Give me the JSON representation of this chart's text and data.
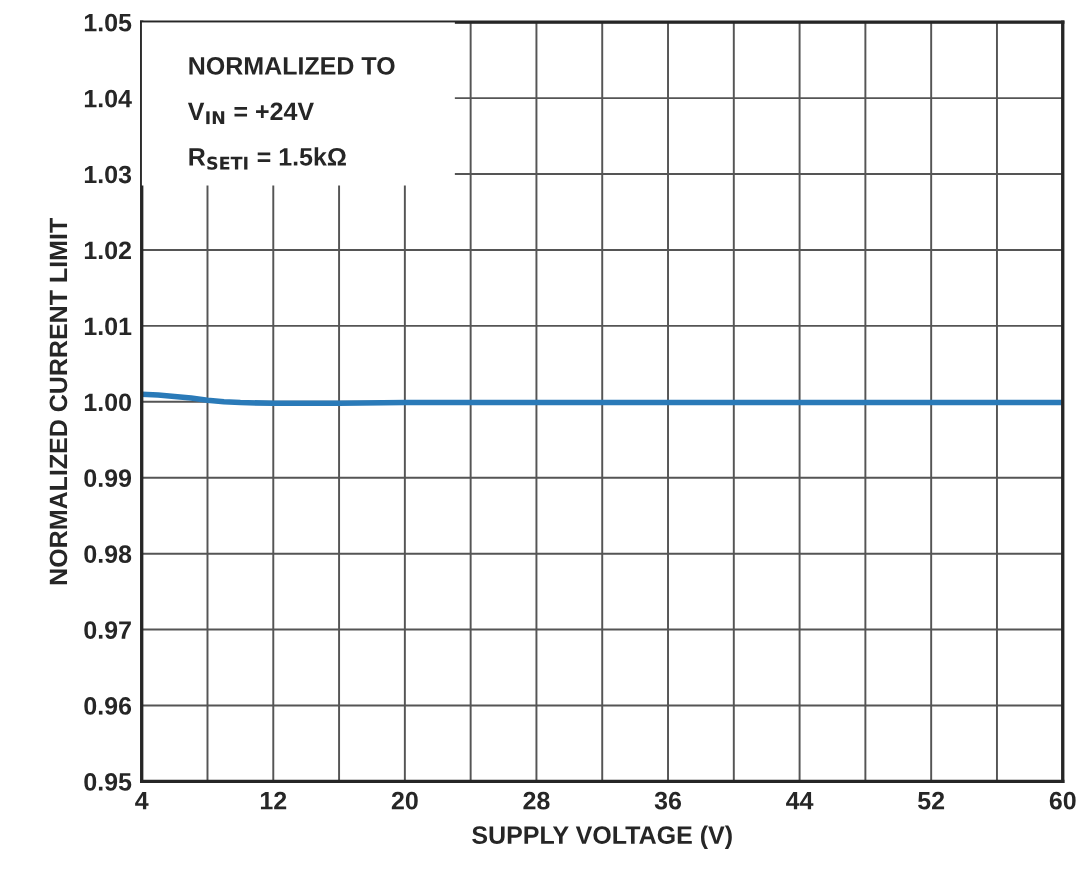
{
  "chart_data": {
    "type": "line",
    "xlabel": "SUPPLY VOLTAGE (V)",
    "ylabel": "NORMALIZED CURRENT LIMIT",
    "annotations": [
      "NORMALIZED TO",
      "V$_{IN}$ = +24V",
      "R$_{SETI}$ = 1.5kΩ"
    ],
    "x": [
      4,
      5,
      6,
      7,
      8,
      9,
      10,
      12,
      16,
      20,
      28,
      36,
      44,
      52,
      60
    ],
    "series": [
      {
        "color": "#2a7ab8",
        "values": [
          1.001,
          1.0009,
          1.0007,
          1.0005,
          1.0002,
          1.0,
          0.9999,
          0.9998,
          0.9998,
          0.9999,
          0.9999,
          0.9999,
          0.9999,
          0.9999,
          0.9999
        ]
      }
    ],
    "xlim": [
      4,
      60
    ],
    "ylim": [
      0.95,
      1.05
    ],
    "xticks": [
      4,
      {
        "value": 8,
        "label": null
      },
      12,
      {
        "value": 16,
        "label": null
      },
      20,
      {
        "value": 24,
        "label": null
      },
      28,
      {
        "value": 32,
        "label": null
      },
      36,
      {
        "value": 40,
        "label": null
      },
      44,
      {
        "value": 48,
        "label": null
      },
      52,
      {
        "value": 56,
        "label": null
      },
      60
    ],
    "yticks": [
      {
        "value": 0.95,
        "label": "0.95"
      },
      {
        "value": 0.96,
        "label": "0.96"
      },
      {
        "value": 0.97,
        "label": "0.97"
      },
      {
        "value": 0.98,
        "label": "0.98"
      },
      {
        "value": 0.99,
        "label": "0.99"
      },
      {
        "value": 1.0,
        "label": "1.00"
      },
      {
        "value": 1.01,
        "label": "1.01"
      },
      {
        "value": 1.02,
        "label": "1.02"
      },
      {
        "value": 1.03,
        "label": "1.03"
      },
      {
        "value": 1.04,
        "label": "1.04"
      },
      {
        "value": 1.05,
        "label": "1.05"
      }
    ],
    "grid": true,
    "legend": false,
    "marker": "none",
    "line_style": "solid"
  }
}
